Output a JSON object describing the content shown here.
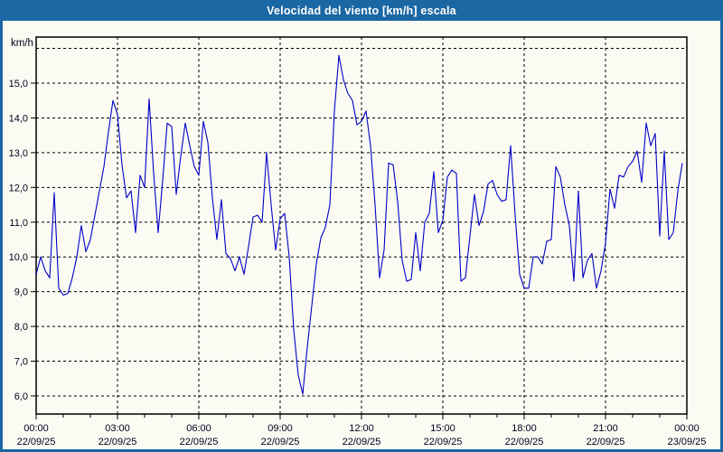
{
  "window": {
    "title": "Velocidad del viento [km/h] escala"
  },
  "colors": {
    "titlebar": "#1B67A4",
    "frame_border": "#1B67A4",
    "background": "#FBFBF3",
    "plot_border": "#000000",
    "gridline": "#000000",
    "line": "#0000C8",
    "label_text": "#00001E"
  },
  "y_axis": {
    "unit_label": "km/h",
    "tick_labels": [
      "15,0",
      "14,0",
      "13,0",
      "12,0",
      "11,0",
      "10,0",
      "9,0",
      "8,0",
      "7,0",
      "6,0"
    ],
    "tick_values": [
      15,
      14,
      13,
      12,
      11,
      10,
      9,
      8,
      7,
      6
    ]
  },
  "x_axis": {
    "major_ticks": [
      {
        "time": "00:00",
        "date": "22/09/25"
      },
      {
        "time": "03:00",
        "date": "22/09/25"
      },
      {
        "time": "06:00",
        "date": "22/09/25"
      },
      {
        "time": "09:00",
        "date": "22/09/25"
      },
      {
        "time": "12:00",
        "date": "22/09/25"
      },
      {
        "time": "15:00",
        "date": "22/09/25"
      },
      {
        "time": "18:00",
        "date": "22/09/25"
      },
      {
        "time": "21:00",
        "date": "22/09/25"
      },
      {
        "time": "00:00",
        "date": "23/09/25"
      }
    ]
  },
  "chart_data": {
    "type": "line",
    "title": "Velocidad del viento [km/h] escala",
    "xlabel": "",
    "ylabel": "km/h",
    "ylim": [
      5.5,
      16.35
    ],
    "xlim_hours": [
      0,
      24
    ],
    "grid": "dashed",
    "grid_y_values": [
      6,
      7,
      8,
      9,
      10,
      11,
      12,
      13,
      14,
      15,
      16
    ],
    "grid_x_hours": [
      3,
      6,
      9,
      12,
      15,
      18,
      21
    ],
    "legend": "none",
    "series": [
      {
        "name": "Velocidad del viento [km/h]",
        "color": "#0000C8",
        "start": "22/09/25 00:00",
        "interval_minutes": 10,
        "values": [
          9.5,
          10.0,
          9.6,
          9.4,
          11.85,
          9.1,
          8.9,
          8.95,
          9.4,
          10.0,
          10.9,
          10.15,
          10.5,
          11.2,
          11.9,
          12.6,
          13.6,
          14.5,
          14.1,
          12.65,
          11.7,
          11.9,
          10.7,
          12.35,
          12.0,
          14.55,
          12.4,
          10.7,
          12.2,
          13.85,
          13.75,
          11.8,
          12.9,
          13.85,
          13.2,
          12.6,
          12.35,
          13.9,
          13.3,
          11.7,
          10.5,
          11.65,
          10.1,
          9.95,
          9.6,
          10.0,
          9.5,
          10.3,
          11.15,
          11.2,
          11.0,
          13.0,
          11.5,
          10.2,
          11.1,
          11.25,
          10.0,
          7.9,
          6.6,
          6.05,
          7.4,
          8.6,
          9.8,
          10.55,
          10.85,
          11.5,
          14.2,
          15.8,
          15.1,
          14.7,
          14.5,
          13.8,
          13.9,
          14.2,
          13.2,
          11.5,
          9.4,
          10.2,
          12.7,
          12.65,
          11.6,
          9.9,
          9.3,
          9.35,
          10.7,
          9.6,
          11.0,
          11.25,
          12.45,
          10.7,
          11.05,
          12.3,
          12.5,
          12.4,
          9.3,
          9.4,
          10.6,
          11.8,
          10.9,
          11.3,
          12.1,
          12.2,
          11.8,
          11.6,
          11.65,
          13.2,
          11.2,
          9.5,
          9.1,
          9.1,
          10.0,
          10.0,
          9.8,
          10.45,
          10.5,
          12.6,
          12.3,
          11.5,
          10.9,
          9.3,
          11.9,
          9.4,
          9.9,
          10.1,
          9.1,
          9.6,
          10.4,
          11.95,
          11.4,
          12.35,
          12.3,
          12.6,
          12.75,
          13.05,
          12.15,
          13.85,
          13.2,
          13.55,
          10.6,
          13.05,
          10.5,
          10.7,
          11.9,
          12.7
        ]
      }
    ]
  }
}
